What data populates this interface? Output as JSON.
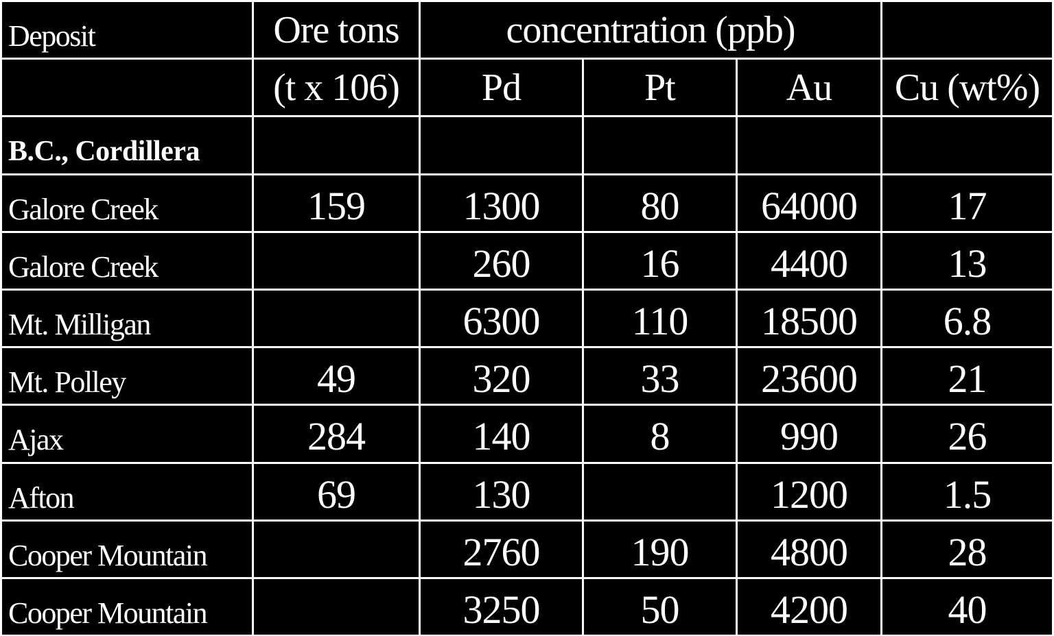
{
  "table": {
    "header": [
      [
        "Deposit",
        "Ore tons",
        "concentration (ppb)",
        null
      ],
      [
        null,
        "(t x 106)",
        "Pd",
        "Pt",
        "Au",
        "Cu (wt%)"
      ]
    ],
    "section": "B.C., Cordillera",
    "rows": [
      [
        "Galore Creek",
        159,
        1300,
        80,
        64000,
        17
      ],
      [
        "Galore Creek",
        null,
        260,
        16,
        4400,
        13
      ],
      [
        "Mt. Milligan",
        null,
        6300,
        110,
        18500,
        6.8
      ],
      [
        "Mt. Polley",
        49,
        320,
        33,
        23600,
        21
      ],
      [
        "Ajax",
        284,
        140,
        8,
        990,
        26
      ],
      [
        "Afton",
        69,
        130,
        null,
        1200,
        1.5
      ],
      [
        "Cooper Mountain",
        null,
        2760,
        190,
        4800,
        28
      ],
      [
        "Cooper Mountain",
        null,
        3250,
        50,
        4200,
        40
      ]
    ]
  }
}
